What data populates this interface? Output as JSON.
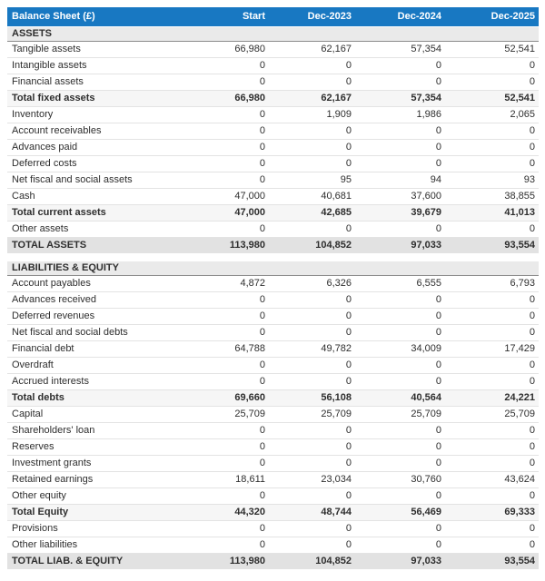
{
  "header": {
    "title": "Balance Sheet (£)",
    "columns": [
      "Start",
      "Dec-2023",
      "Dec-2024",
      "Dec-2025"
    ]
  },
  "colors": {
    "header_bg": "#1878c2",
    "header_text": "#ffffff",
    "section_bg": "#eaeaea",
    "section_border": "#8c8c8c",
    "subtotal_bg": "#f6f6f6",
    "grandtotal_bg": "#e2e2e2",
    "row_border": "#e3e3e3",
    "strong_border": "#4a4a4a",
    "text": "#2e2e2e"
  },
  "sections": [
    {
      "header": "ASSETS",
      "rows": [
        {
          "label": "Tangible assets",
          "values": [
            "66,980",
            "62,167",
            "57,354",
            "52,541"
          ],
          "style": "normal"
        },
        {
          "label": "Intangible assets",
          "values": [
            "0",
            "0",
            "0",
            "0"
          ],
          "style": "normal"
        },
        {
          "label": "Financial assets",
          "values": [
            "0",
            "0",
            "0",
            "0"
          ],
          "style": "normal"
        },
        {
          "label": "Total fixed assets",
          "values": [
            "66,980",
            "62,167",
            "57,354",
            "52,541"
          ],
          "style": "subtotal"
        },
        {
          "label": "Inventory",
          "values": [
            "0",
            "1,909",
            "1,986",
            "2,065"
          ],
          "style": "normal"
        },
        {
          "label": "Account receivables",
          "values": [
            "0",
            "0",
            "0",
            "0"
          ],
          "style": "normal"
        },
        {
          "label": "Advances paid",
          "values": [
            "0",
            "0",
            "0",
            "0"
          ],
          "style": "normal"
        },
        {
          "label": "Deferred costs",
          "values": [
            "0",
            "0",
            "0",
            "0"
          ],
          "style": "normal"
        },
        {
          "label": "Net fiscal and social assets",
          "values": [
            "0",
            "95",
            "94",
            "93"
          ],
          "style": "normal"
        },
        {
          "label": "Cash",
          "values": [
            "47,000",
            "40,681",
            "37,600",
            "38,855"
          ],
          "style": "normal"
        },
        {
          "label": "Total current assets",
          "values": [
            "47,000",
            "42,685",
            "39,679",
            "41,013"
          ],
          "style": "subtotal"
        },
        {
          "label": "Other assets",
          "values": [
            "0",
            "0",
            "0",
            "0"
          ],
          "style": "normal"
        },
        {
          "label": "TOTAL ASSETS",
          "values": [
            "113,980",
            "104,852",
            "97,033",
            "93,554"
          ],
          "style": "grandtotal"
        }
      ]
    },
    {
      "header": "LIABILITIES & EQUITY",
      "rows": [
        {
          "label": "Account payables",
          "values": [
            "4,872",
            "6,326",
            "6,555",
            "6,793"
          ],
          "style": "normal"
        },
        {
          "label": "Advances received",
          "values": [
            "0",
            "0",
            "0",
            "0"
          ],
          "style": "normal"
        },
        {
          "label": "Deferred revenues",
          "values": [
            "0",
            "0",
            "0",
            "0"
          ],
          "style": "normal"
        },
        {
          "label": "Net fiscal and social debts",
          "values": [
            "0",
            "0",
            "0",
            "0"
          ],
          "style": "normal"
        },
        {
          "label": "Financial debt",
          "values": [
            "64,788",
            "49,782",
            "34,009",
            "17,429"
          ],
          "style": "normal"
        },
        {
          "label": "Overdraft",
          "values": [
            "0",
            "0",
            "0",
            "0"
          ],
          "style": "normal"
        },
        {
          "label": "Accrued interests",
          "values": [
            "0",
            "0",
            "0",
            "0"
          ],
          "style": "normal"
        },
        {
          "label": "Total debts",
          "values": [
            "69,660",
            "56,108",
            "40,564",
            "24,221"
          ],
          "style": "subtotal"
        },
        {
          "label": "Capital",
          "values": [
            "25,709",
            "25,709",
            "25,709",
            "25,709"
          ],
          "style": "normal"
        },
        {
          "label": "Shareholders' loan",
          "values": [
            "0",
            "0",
            "0",
            "0"
          ],
          "style": "normal"
        },
        {
          "label": "Reserves",
          "values": [
            "0",
            "0",
            "0",
            "0"
          ],
          "style": "normal"
        },
        {
          "label": "Investment grants",
          "values": [
            "0",
            "0",
            "0",
            "0"
          ],
          "style": "normal"
        },
        {
          "label": "Retained earnings",
          "values": [
            "18,611",
            "23,034",
            "30,760",
            "43,624"
          ],
          "style": "normal"
        },
        {
          "label": "Other equity",
          "values": [
            "0",
            "0",
            "0",
            "0"
          ],
          "style": "normal"
        },
        {
          "label": "Total Equity",
          "values": [
            "44,320",
            "48,744",
            "56,469",
            "69,333"
          ],
          "style": "subtotal"
        },
        {
          "label": "Provisions",
          "values": [
            "0",
            "0",
            "0",
            "0"
          ],
          "style": "normal"
        },
        {
          "label": "Other liabilities",
          "values": [
            "0",
            "0",
            "0",
            "0"
          ],
          "style": "normal"
        },
        {
          "label": "TOTAL LIAB. & EQUITY",
          "values": [
            "113,980",
            "104,852",
            "97,033",
            "93,554"
          ],
          "style": "grandtotal"
        }
      ]
    }
  ]
}
